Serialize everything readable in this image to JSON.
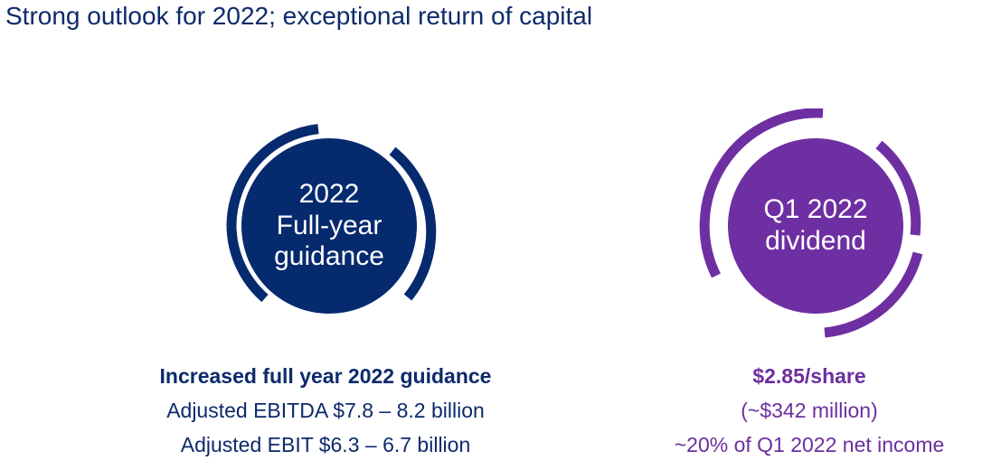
{
  "header": {
    "title": "Strong outlook for 2022; exceptional return of capital"
  },
  "colors": {
    "navy": "#062a6e",
    "purple": "#6e2fa2",
    "text_navy": "#0d2a6b",
    "text_purple": "#6b2f9e"
  },
  "guidance": {
    "badge_lines": [
      "2022",
      "Full-year",
      "guidance"
    ],
    "heading": "Increased full year 2022 guidance",
    "lines": [
      "Adjusted EBITDA $7.8 – 8.2 billion",
      "Adjusted EBIT $6.3 – 6.7 billion"
    ]
  },
  "dividend": {
    "badge_lines": [
      "Q1 2022",
      "dividend"
    ],
    "heading": "$2.85/share",
    "lines": [
      "(~$342 million)",
      "~20% of Q1 2022 net income"
    ]
  }
}
